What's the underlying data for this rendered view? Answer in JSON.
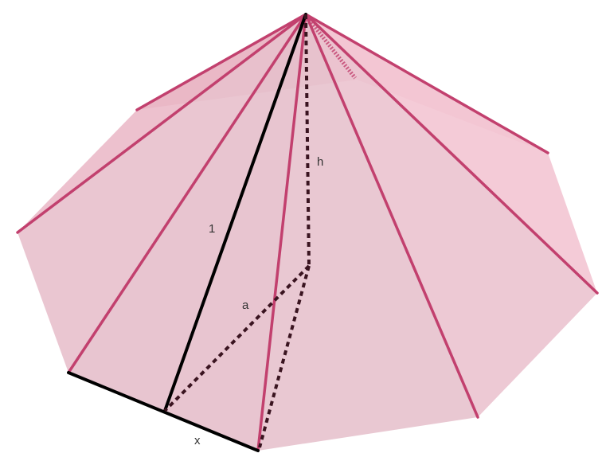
{
  "diagram": {
    "labels": {
      "slant_edge": "1",
      "height": "h",
      "apothem": "a",
      "base_side": "x"
    },
    "colors": {
      "face_fill": "#e48aa5",
      "edge": "#c2406e",
      "highlight": "#000000",
      "hidden": "#3a1420"
    }
  }
}
